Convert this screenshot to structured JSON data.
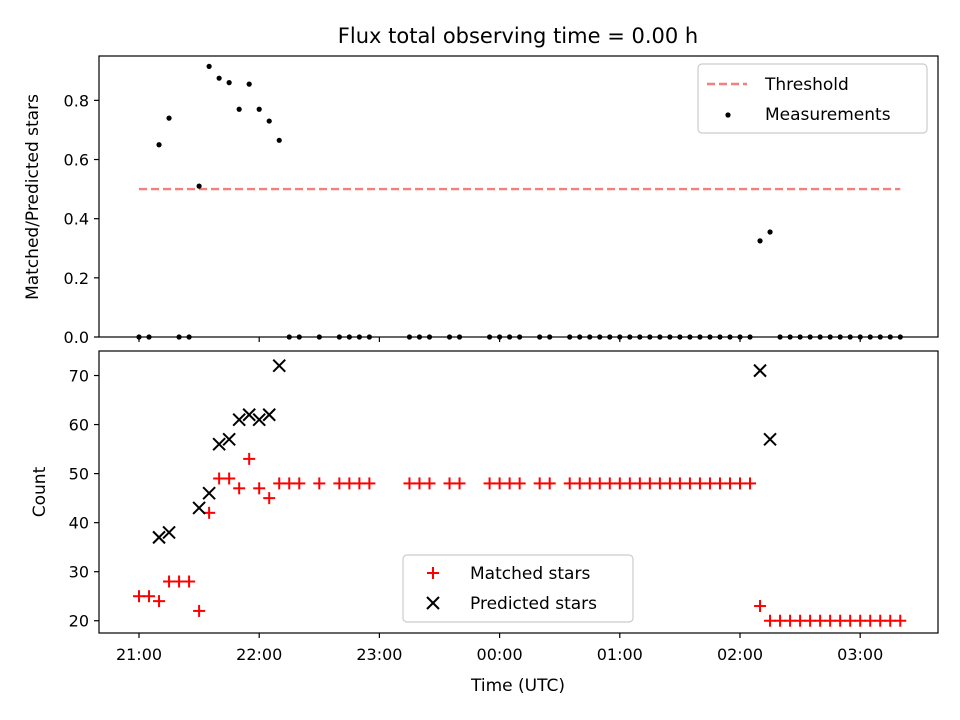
{
  "chart_data": [
    {
      "type": "scatter",
      "title": "Flux total observing time = 0.00 h",
      "xlabel": "",
      "ylabel": "Matched/Predicted stars",
      "ylim": [
        0,
        0.95
      ],
      "yticks": [
        0.0,
        0.2,
        0.4,
        0.6,
        0.8
      ],
      "ytick_labels": [
        "0.0",
        "0.2",
        "0.4",
        "0.6",
        "0.8"
      ],
      "legend_position": "top-right",
      "threshold": {
        "name": "Threshold",
        "value": 0.5,
        "x_start": "21:00",
        "x_end": "03:20",
        "color": "#f47f7f"
      },
      "series": [
        {
          "name": "Measurements",
          "color": "#000000",
          "points": [
            [
              "21:00",
              0
            ],
            [
              "21:05",
              0
            ],
            [
              "21:10",
              0.65
            ],
            [
              "21:15",
              0.74
            ],
            [
              "21:20",
              0
            ],
            [
              "21:25",
              0
            ],
            [
              "21:30",
              0.51
            ],
            [
              "21:35",
              0.915
            ],
            [
              "21:40",
              0.875
            ],
            [
              "21:45",
              0.86
            ],
            [
              "21:50",
              0.77
            ],
            [
              "21:55",
              0.855
            ],
            [
              "22:00",
              0.77
            ],
            [
              "22:05",
              0.73
            ],
            [
              "22:10",
              0.665
            ],
            [
              "22:15",
              0
            ],
            [
              "22:20",
              0
            ],
            [
              "22:30",
              0
            ],
            [
              "22:40",
              0
            ],
            [
              "22:45",
              0
            ],
            [
              "22:50",
              0
            ],
            [
              "22:55",
              0
            ],
            [
              "23:15",
              0
            ],
            [
              "23:20",
              0
            ],
            [
              "23:25",
              0
            ],
            [
              "23:35",
              0
            ],
            [
              "23:40",
              0
            ],
            [
              "23:55",
              0
            ],
            [
              "00:00",
              0
            ],
            [
              "00:05",
              0
            ],
            [
              "00:10",
              0
            ],
            [
              "00:20",
              0
            ],
            [
              "00:25",
              0
            ],
            [
              "00:35",
              0
            ],
            [
              "00:40",
              0
            ],
            [
              "00:45",
              0
            ],
            [
              "00:50",
              0
            ],
            [
              "00:55",
              0
            ],
            [
              "01:00",
              0
            ],
            [
              "01:05",
              0
            ],
            [
              "01:10",
              0
            ],
            [
              "01:15",
              0
            ],
            [
              "01:20",
              0
            ],
            [
              "01:25",
              0
            ],
            [
              "01:30",
              0
            ],
            [
              "01:35",
              0
            ],
            [
              "01:40",
              0
            ],
            [
              "01:45",
              0
            ],
            [
              "01:50",
              0
            ],
            [
              "01:55",
              0
            ],
            [
              "02:00",
              0
            ],
            [
              "02:05",
              0
            ],
            [
              "02:10",
              0.325
            ],
            [
              "02:15",
              0.355
            ],
            [
              "02:20",
              0
            ],
            [
              "02:25",
              0
            ],
            [
              "02:30",
              0
            ],
            [
              "02:35",
              0
            ],
            [
              "02:40",
              0
            ],
            [
              "02:45",
              0
            ],
            [
              "02:50",
              0
            ],
            [
              "02:55",
              0
            ],
            [
              "03:00",
              0
            ],
            [
              "03:05",
              0
            ],
            [
              "03:10",
              0
            ],
            [
              "03:15",
              0
            ],
            [
              "03:20",
              0
            ]
          ]
        }
      ]
    },
    {
      "type": "scatter",
      "title": "",
      "xlabel": "Time (UTC)",
      "ylabel": "Count",
      "ylim": [
        17.5,
        75
      ],
      "yticks": [
        20,
        30,
        40,
        50,
        60,
        70
      ],
      "ytick_labels": [
        "20",
        "30",
        "40",
        "50",
        "60",
        "70"
      ],
      "x_tick_labels": [
        "21:00",
        "22:00",
        "23:00",
        "00:00",
        "01:00",
        "02:00",
        "03:00"
      ],
      "legend_position": "lower-center",
      "series": [
        {
          "name": "Matched stars",
          "color": "#ff0000",
          "marker": "+",
          "points": [
            [
              "21:00",
              25
            ],
            [
              "21:05",
              25
            ],
            [
              "21:10",
              24
            ],
            [
              "21:15",
              28
            ],
            [
              "21:20",
              28
            ],
            [
              "21:25",
              28
            ],
            [
              "21:30",
              22
            ],
            [
              "21:35",
              42
            ],
            [
              "21:40",
              49
            ],
            [
              "21:45",
              49
            ],
            [
              "21:50",
              47
            ],
            [
              "21:55",
              53
            ],
            [
              "22:00",
              47
            ],
            [
              "22:05",
              45
            ],
            [
              "22:10",
              48
            ],
            [
              "22:15",
              48
            ],
            [
              "22:20",
              48
            ],
            [
              "22:30",
              48
            ],
            [
              "22:40",
              48
            ],
            [
              "22:45",
              48
            ],
            [
              "22:50",
              48
            ],
            [
              "22:55",
              48
            ],
            [
              "23:15",
              48
            ],
            [
              "23:20",
              48
            ],
            [
              "23:25",
              48
            ],
            [
              "23:35",
              48
            ],
            [
              "23:40",
              48
            ],
            [
              "23:55",
              48
            ],
            [
              "00:00",
              48
            ],
            [
              "00:05",
              48
            ],
            [
              "00:10",
              48
            ],
            [
              "00:20",
              48
            ],
            [
              "00:25",
              48
            ],
            [
              "00:35",
              48
            ],
            [
              "00:40",
              48
            ],
            [
              "00:45",
              48
            ],
            [
              "00:50",
              48
            ],
            [
              "00:55",
              48
            ],
            [
              "01:00",
              48
            ],
            [
              "01:05",
              48
            ],
            [
              "01:10",
              48
            ],
            [
              "01:15",
              48
            ],
            [
              "01:20",
              48
            ],
            [
              "01:25",
              48
            ],
            [
              "01:30",
              48
            ],
            [
              "01:35",
              48
            ],
            [
              "01:40",
              48
            ],
            [
              "01:45",
              48
            ],
            [
              "01:50",
              48
            ],
            [
              "01:55",
              48
            ],
            [
              "02:00",
              48
            ],
            [
              "02:05",
              48
            ],
            [
              "02:10",
              23
            ],
            [
              "02:15",
              20
            ],
            [
              "02:20",
              20
            ],
            [
              "02:25",
              20
            ],
            [
              "02:30",
              20
            ],
            [
              "02:35",
              20
            ],
            [
              "02:40",
              20
            ],
            [
              "02:45",
              20
            ],
            [
              "02:50",
              20
            ],
            [
              "02:55",
              20
            ],
            [
              "03:00",
              20
            ],
            [
              "03:05",
              20
            ],
            [
              "03:10",
              20
            ],
            [
              "03:15",
              20
            ],
            [
              "03:20",
              20
            ]
          ]
        },
        {
          "name": "Predicted stars",
          "color": "#000000",
          "marker": "x",
          "points": [
            [
              "21:10",
              37
            ],
            [
              "21:15",
              38
            ],
            [
              "21:30",
              43
            ],
            [
              "21:35",
              46
            ],
            [
              "21:40",
              56
            ],
            [
              "21:45",
              57
            ],
            [
              "21:50",
              61
            ],
            [
              "21:55",
              62
            ],
            [
              "22:00",
              61
            ],
            [
              "22:05",
              62
            ],
            [
              "22:10",
              72
            ],
            [
              "02:10",
              71
            ],
            [
              "02:15",
              57
            ]
          ]
        }
      ]
    }
  ]
}
